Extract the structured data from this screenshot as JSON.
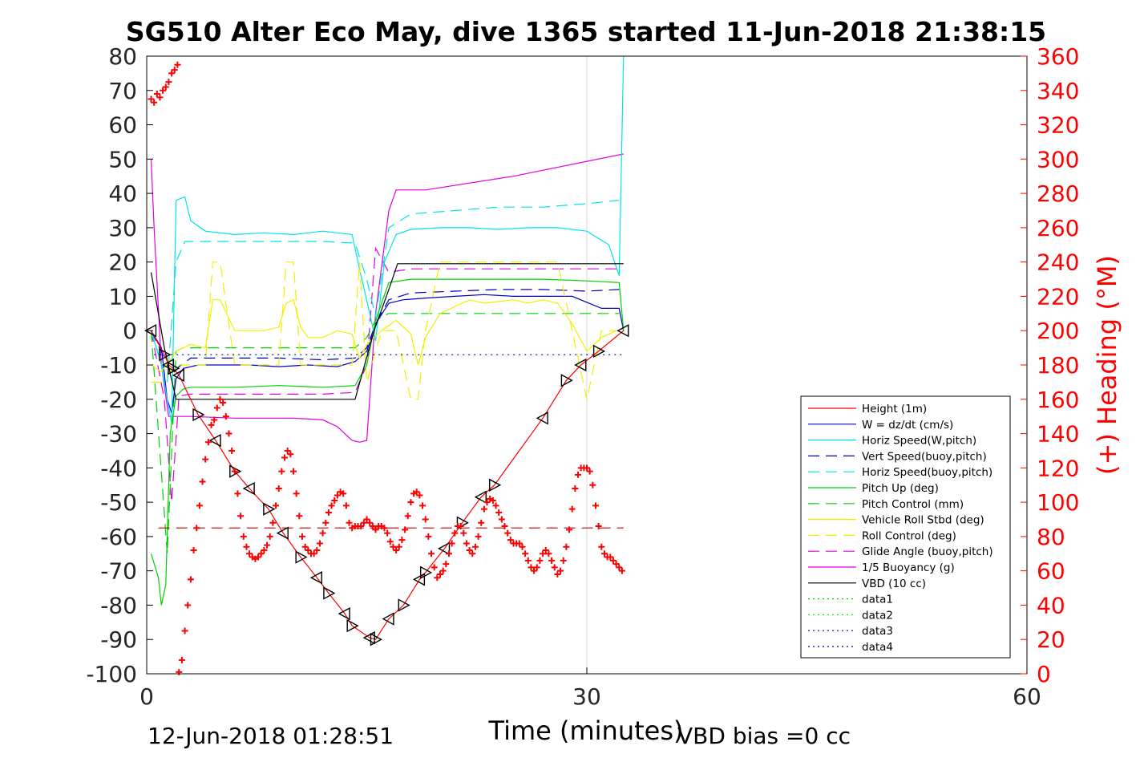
{
  "chart_data": {
    "type": "line",
    "title": "SG510 Alter Eco May, dive 1365 started 11-Jun-2018 21:38:15",
    "xlabel": "Time (minutes)",
    "ylabel_right": "(+) Heading (°M)",
    "xlim": [
      0,
      60
    ],
    "ylim_left": [
      -100,
      80
    ],
    "ylim_right": [
      0,
      360
    ],
    "x_ticks": [
      "0",
      "30",
      "60"
    ],
    "x_tick_values": [
      0,
      30,
      60
    ],
    "y_ticks_left": [
      "80",
      "70",
      "60",
      "50",
      "40",
      "30",
      "20",
      "10",
      "0",
      "-10",
      "-20",
      "-30",
      "-40",
      "-50",
      "-60",
      "-70",
      "-80",
      "-90",
      "-100"
    ],
    "y_tick_values_left": [
      80,
      70,
      60,
      50,
      40,
      30,
      20,
      10,
      0,
      -10,
      -20,
      -30,
      -40,
      -50,
      -60,
      -70,
      -80,
      -90,
      -100
    ],
    "y_ticks_right": [
      "360",
      "340",
      "320",
      "300",
      "280",
      "260",
      "240",
      "220",
      "200",
      "180",
      "160",
      "140",
      "120",
      "100",
      "80",
      "60",
      "40",
      "20",
      "0"
    ],
    "y_tick_values_right": [
      360,
      340,
      320,
      300,
      280,
      260,
      240,
      220,
      200,
      180,
      160,
      140,
      120,
      100,
      80,
      60,
      40,
      20,
      0
    ],
    "grid": "x at 30 only",
    "legend_position": "lower-right",
    "footer_left": "12-Jun-2018 01:28:51",
    "footer_right": "VBD bias =0 cc",
    "series": [
      {
        "name": "Height (1m)",
        "color": "#ff0000",
        "style": "solid",
        "marker": "triangle",
        "x": [
          0.3,
          1.2,
          1.5,
          1.8,
          2.2,
          3.5,
          4.7,
          6.0,
          7.0,
          8.3,
          9.3,
          10.5,
          11.6,
          12.4,
          13.5,
          14.0,
          15.2,
          15.6,
          16.5,
          17.5,
          18.6,
          19.0,
          20.3,
          21.5,
          22.8,
          23.7,
          27.0,
          28.6,
          29.6,
          30.8,
          32.5
        ],
        "y": [
          0,
          -7,
          -10,
          -11,
          -13,
          -24.5,
          -32,
          -41,
          -46,
          -52,
          -59,
          -66,
          -72,
          -76.5,
          -82.5,
          -86,
          -89.5,
          -90,
          -84,
          -80,
          -72.5,
          -70.5,
          -63.5,
          -56,
          -48.5,
          -45,
          -25.5,
          -14.5,
          -10,
          -6,
          0
        ]
      },
      {
        "name": "W = dz/dt (cm/s)",
        "color": "#0000c8",
        "style": "solid",
        "x": [
          0.3,
          1.0,
          1.4,
          1.7,
          2.0,
          2.5,
          3.5,
          5,
          7,
          9,
          11,
          13,
          14.2,
          15,
          15.6,
          16.5,
          17.5,
          19,
          21,
          23,
          25,
          27,
          29,
          31,
          32.2,
          32.5
        ],
        "y": [
          0,
          -5,
          -20,
          -24,
          -14,
          -11,
          -10,
          -10,
          -10,
          -10.5,
          -10,
          -10.5,
          -9,
          -6,
          2,
          8,
          9,
          9.5,
          10,
          10.5,
          10,
          10,
          10,
          6.5,
          6.5,
          0
        ]
      },
      {
        "name": "Horiz Speed(W,pitch)",
        "color": "#00e5e5",
        "style": "solid",
        "x": [
          0.3,
          1.0,
          1.4,
          1.7,
          2.0,
          2.6,
          3.0,
          4,
          6,
          8,
          10,
          12,
          14,
          14.5,
          15.2,
          15.6,
          16.2,
          17,
          18,
          20,
          22,
          24,
          26,
          28,
          30,
          31.5,
          32.2,
          32.5
        ],
        "y": [
          0,
          -10,
          -20,
          -27,
          38,
          39,
          32,
          29,
          28,
          28.5,
          28,
          29,
          28,
          18,
          5,
          -3,
          20,
          28,
          29.5,
          30,
          30,
          29.5,
          30,
          30,
          29,
          25,
          16,
          80
        ]
      },
      {
        "name": "Vert Speed(buoy,pitch)",
        "color": "#0000c8",
        "style": "dashed",
        "x": [
          0.3,
          1.2,
          1.7,
          2.2,
          3,
          6,
          9,
          12,
          14.2,
          15,
          15.6,
          16.5,
          18,
          21,
          24,
          27,
          30,
          32.2
        ],
        "y": [
          0,
          -8,
          -13,
          -10.5,
          -8,
          -8,
          -8,
          -8.5,
          -8,
          -5,
          2,
          9,
          11,
          11.5,
          12,
          12,
          11.5,
          12
        ]
      },
      {
        "name": "Horiz Speed(buoy,pitch)",
        "color": "#00e5e5",
        "style": "dashed",
        "x": [
          0.3,
          1.4,
          2.0,
          2.6,
          3,
          6,
          9,
          12,
          14.2,
          15,
          15.6,
          16.5,
          18,
          21,
          24,
          27,
          30,
          32.2
        ],
        "y": [
          0,
          -15,
          20,
          26,
          26,
          26,
          26,
          26,
          25.5,
          15,
          4,
          30,
          34,
          35,
          36,
          36,
          37,
          38
        ]
      },
      {
        "name": "Pitch Up (deg)",
        "color": "#00d000",
        "style": "solid",
        "x": [
          0.3,
          0.8,
          1.0,
          1.3,
          1.6,
          2.0,
          2.5,
          3,
          6,
          9,
          12,
          14.2,
          15,
          15.6,
          16.5,
          18,
          21,
          24,
          27,
          30,
          32.2,
          32.5
        ],
        "y": [
          -65,
          -72,
          -80,
          -74,
          -30,
          -19,
          -17,
          -16.5,
          -16.5,
          -16,
          -16.5,
          -16,
          -10,
          3,
          14,
          15,
          15,
          15,
          15,
          14.5,
          14,
          0
        ]
      },
      {
        "name": "Pitch Control (mm)",
        "color": "#00d000",
        "style": "dashed",
        "x": [
          0.3,
          1.4,
          2.0,
          2.5,
          3,
          6,
          9,
          12,
          14.2,
          15,
          15.6,
          16.5,
          18,
          21,
          24,
          27,
          30,
          32.2
        ],
        "y": [
          0,
          -65,
          -6,
          -5,
          -5,
          -5,
          -5,
          -5,
          -5,
          -2,
          3,
          5,
          5,
          5,
          5,
          5,
          5,
          5
        ]
      },
      {
        "name": "Vehicle Roll Stbd (deg)",
        "color": "#f0f000",
        "style": "solid",
        "x": [
          0.3,
          1,
          2,
          3,
          4,
          4.5,
          5,
          6,
          6.5,
          8,
          9,
          9.5,
          10,
          10.5,
          11,
          12,
          13,
          14,
          14.5,
          15,
          16,
          17,
          18,
          18.5,
          19,
          20,
          22,
          23,
          25,
          26,
          27,
          28,
          29,
          30,
          31,
          32
        ],
        "y": [
          -10,
          -12,
          -6,
          -4,
          -5,
          9,
          9,
          0,
          0,
          0,
          1,
          8,
          9,
          1,
          -2,
          -2,
          0,
          -1,
          -8,
          -4,
          0,
          3,
          -1,
          -10,
          -2,
          5,
          9,
          8,
          9,
          8,
          9,
          8,
          2,
          -6,
          -2,
          0
        ]
      },
      {
        "name": "Roll Control (deg)",
        "color": "#f0f000",
        "style": "dashed",
        "x": [
          0.3,
          1,
          2,
          3,
          4,
          4.5,
          5,
          6,
          6.5,
          8,
          9,
          9.5,
          10,
          10.5,
          11,
          12,
          13,
          14,
          14.5,
          15,
          16,
          17,
          18,
          18.5,
          19,
          20,
          22,
          23,
          25,
          26,
          27,
          28,
          29,
          30,
          31,
          32
        ],
        "y": [
          -15,
          -15,
          -10,
          -10,
          -10,
          20,
          20,
          -10,
          -10,
          -10,
          -10,
          20,
          20,
          -10,
          -10,
          -10,
          -10,
          -10,
          20,
          -15,
          0,
          0,
          -20,
          -20,
          0,
          20,
          20,
          20,
          20,
          20,
          20,
          20,
          0,
          -20,
          0,
          0
        ]
      },
      {
        "name": "Glide Angle (buoy,pitch)",
        "color": "#e000e0",
        "style": "dashed",
        "x": [
          0.3,
          1.2,
          1.7,
          2.2,
          3,
          6,
          9,
          12,
          14.2,
          15,
          15.6,
          16.5,
          18,
          21,
          24,
          27,
          30,
          32.2
        ],
        "y": [
          0,
          -20,
          -50,
          -19,
          -18.5,
          -18.5,
          -18.5,
          -18.5,
          -18,
          -10,
          24,
          17,
          18,
          18,
          18,
          18,
          18,
          18
        ]
      },
      {
        "name": "1/5 Buoyancy (g)",
        "color": "#e000e0",
        "style": "solid",
        "x": [
          0.3,
          0.5,
          1.0,
          1.5,
          2.0,
          3,
          6,
          9,
          10,
          12,
          13,
          14,
          14.5,
          15,
          15.6,
          16.5,
          17,
          19,
          25,
          32.5
        ],
        "y": [
          50,
          30,
          -10,
          -25,
          -25,
          -25,
          -25.5,
          -25.5,
          -25.5,
          -26,
          -28,
          -32,
          -32.5,
          -32,
          5,
          35,
          41,
          41,
          45,
          51.5
        ]
      },
      {
        "name": "VBD (10 cc)",
        "color": "#000000",
        "style": "solid",
        "x": [
          0.3,
          1.2,
          2.0,
          3,
          6,
          9,
          12,
          14.2,
          15.5,
          16,
          16.5,
          17.1,
          18,
          24,
          30,
          32.5
        ],
        "y": [
          17,
          -5,
          -20,
          -20,
          -20,
          -20,
          -20,
          -20,
          0,
          6,
          12,
          19.5,
          19.5,
          19.5,
          19.5,
          19.5
        ]
      },
      {
        "name": "data1",
        "color": "#00d000",
        "style": "dotted",
        "x": [],
        "y": []
      },
      {
        "name": "data2",
        "color": "#00ff00",
        "style": "dotted",
        "x": [],
        "y": []
      },
      {
        "name": "data3",
        "color": "#0000a0",
        "style": "dotted",
        "x": [
          0.5,
          32.5
        ],
        "y": [
          -7,
          -7
        ]
      },
      {
        "name": "data4",
        "color": "#0000a0",
        "style": "dotted",
        "x": [
          0.5,
          32.5
        ],
        "y": [
          7,
          7
        ]
      }
    ],
    "heading": {
      "axis": "right",
      "color": "#ff0000",
      "marker": "plus",
      "x": [
        0.3,
        0.5,
        0.7,
        0.9,
        1.1,
        1.3,
        1.5,
        1.7,
        1.9,
        2.1,
        2.2,
        2.4,
        2.6,
        2.8,
        3.0,
        3.2,
        3.4,
        3.6,
        3.8,
        4.0,
        4.2,
        4.4,
        4.6,
        4.8,
        5.0,
        5.2,
        5.4,
        5.6,
        5.8,
        6.0,
        6.2,
        6.4,
        6.6,
        6.8,
        7.0,
        7.2,
        7.4,
        7.6,
        7.8,
        8.0,
        8.2,
        8.4,
        8.6,
        8.8,
        9.0,
        9.2,
        9.4,
        9.6,
        9.8,
        10.0,
        10.2,
        10.4,
        10.6,
        10.8,
        11.0,
        11.2,
        11.4,
        11.6,
        11.8,
        12.0,
        12.2,
        12.4,
        12.6,
        12.8,
        13.0,
        13.2,
        13.4,
        13.6,
        13.8,
        14.0,
        14.2,
        14.4,
        14.6,
        14.8,
        15.0,
        15.2,
        15.4,
        15.6,
        15.8,
        16.0,
        16.2,
        16.4,
        16.6,
        16.8,
        17.0,
        17.2,
        17.4,
        17.6,
        17.8,
        18.0,
        18.2,
        18.4,
        18.6,
        18.8,
        19.0,
        19.2,
        19.4,
        19.6,
        19.8,
        20.0,
        20.2,
        20.4,
        20.6,
        20.8,
        21.0,
        21.2,
        21.4,
        21.6,
        21.8,
        22.0,
        22.2,
        22.4,
        22.6,
        22.8,
        23.0,
        23.2,
        23.4,
        23.6,
        23.8,
        24.0,
        24.2,
        24.4,
        24.6,
        24.8,
        25.0,
        25.2,
        25.4,
        25.6,
        25.8,
        26.0,
        26.2,
        26.4,
        26.6,
        26.8,
        27.0,
        27.2,
        27.4,
        27.6,
        27.8,
        28.0,
        28.2,
        28.4,
        28.6,
        28.8,
        29.0,
        29.2,
        29.4,
        29.6,
        29.8,
        30.0,
        30.2,
        30.4,
        30.6,
        30.8,
        31.0,
        31.2,
        31.4,
        31.6,
        31.8,
        32.0,
        32.2,
        32.4
      ],
      "y": [
        335,
        333,
        338,
        336,
        340,
        342,
        345,
        350,
        352,
        355,
        1,
        8,
        25,
        40,
        55,
        72,
        85,
        98,
        112,
        125,
        135,
        145,
        148,
        155,
        160,
        158,
        150,
        140,
        130,
        118,
        105,
        92,
        80,
        74,
        70,
        68,
        67,
        68,
        70,
        72,
        75,
        80,
        88,
        98,
        108,
        118,
        126,
        130,
        128,
        118,
        105,
        92,
        80,
        74,
        72,
        70,
        70,
        72,
        76,
        82,
        88,
        94,
        98,
        101,
        104,
        106,
        105,
        98,
        88,
        85,
        86,
        86,
        86,
        88,
        90,
        88,
        86,
        84,
        86,
        86,
        85,
        82,
        77,
        74,
        72,
        74,
        78,
        84,
        92,
        100,
        105,
        106,
        104,
        98,
        90,
        80,
        70,
        62,
        56,
        58,
        60,
        64,
        70,
        76,
        82,
        86,
        86,
        82,
        76,
        72,
        70,
        74,
        80,
        88,
        96,
        100,
        102,
        101,
        98,
        94,
        90,
        86,
        82,
        78,
        76,
        76,
        76,
        74,
        70,
        66,
        62,
        60,
        62,
        66,
        70,
        72,
        70,
        66,
        62,
        58,
        60,
        66,
        74,
        84,
        96,
        108,
        116,
        120,
        120,
        120,
        118,
        110,
        98,
        86,
        74,
        70,
        68,
        68,
        66,
        64,
        62,
        60
      ]
    },
    "reference_line": {
      "axis": "right",
      "value": 85,
      "color": "#cc0000",
      "style": "dashed",
      "x": [
        0.8,
        32.5
      ]
    }
  }
}
